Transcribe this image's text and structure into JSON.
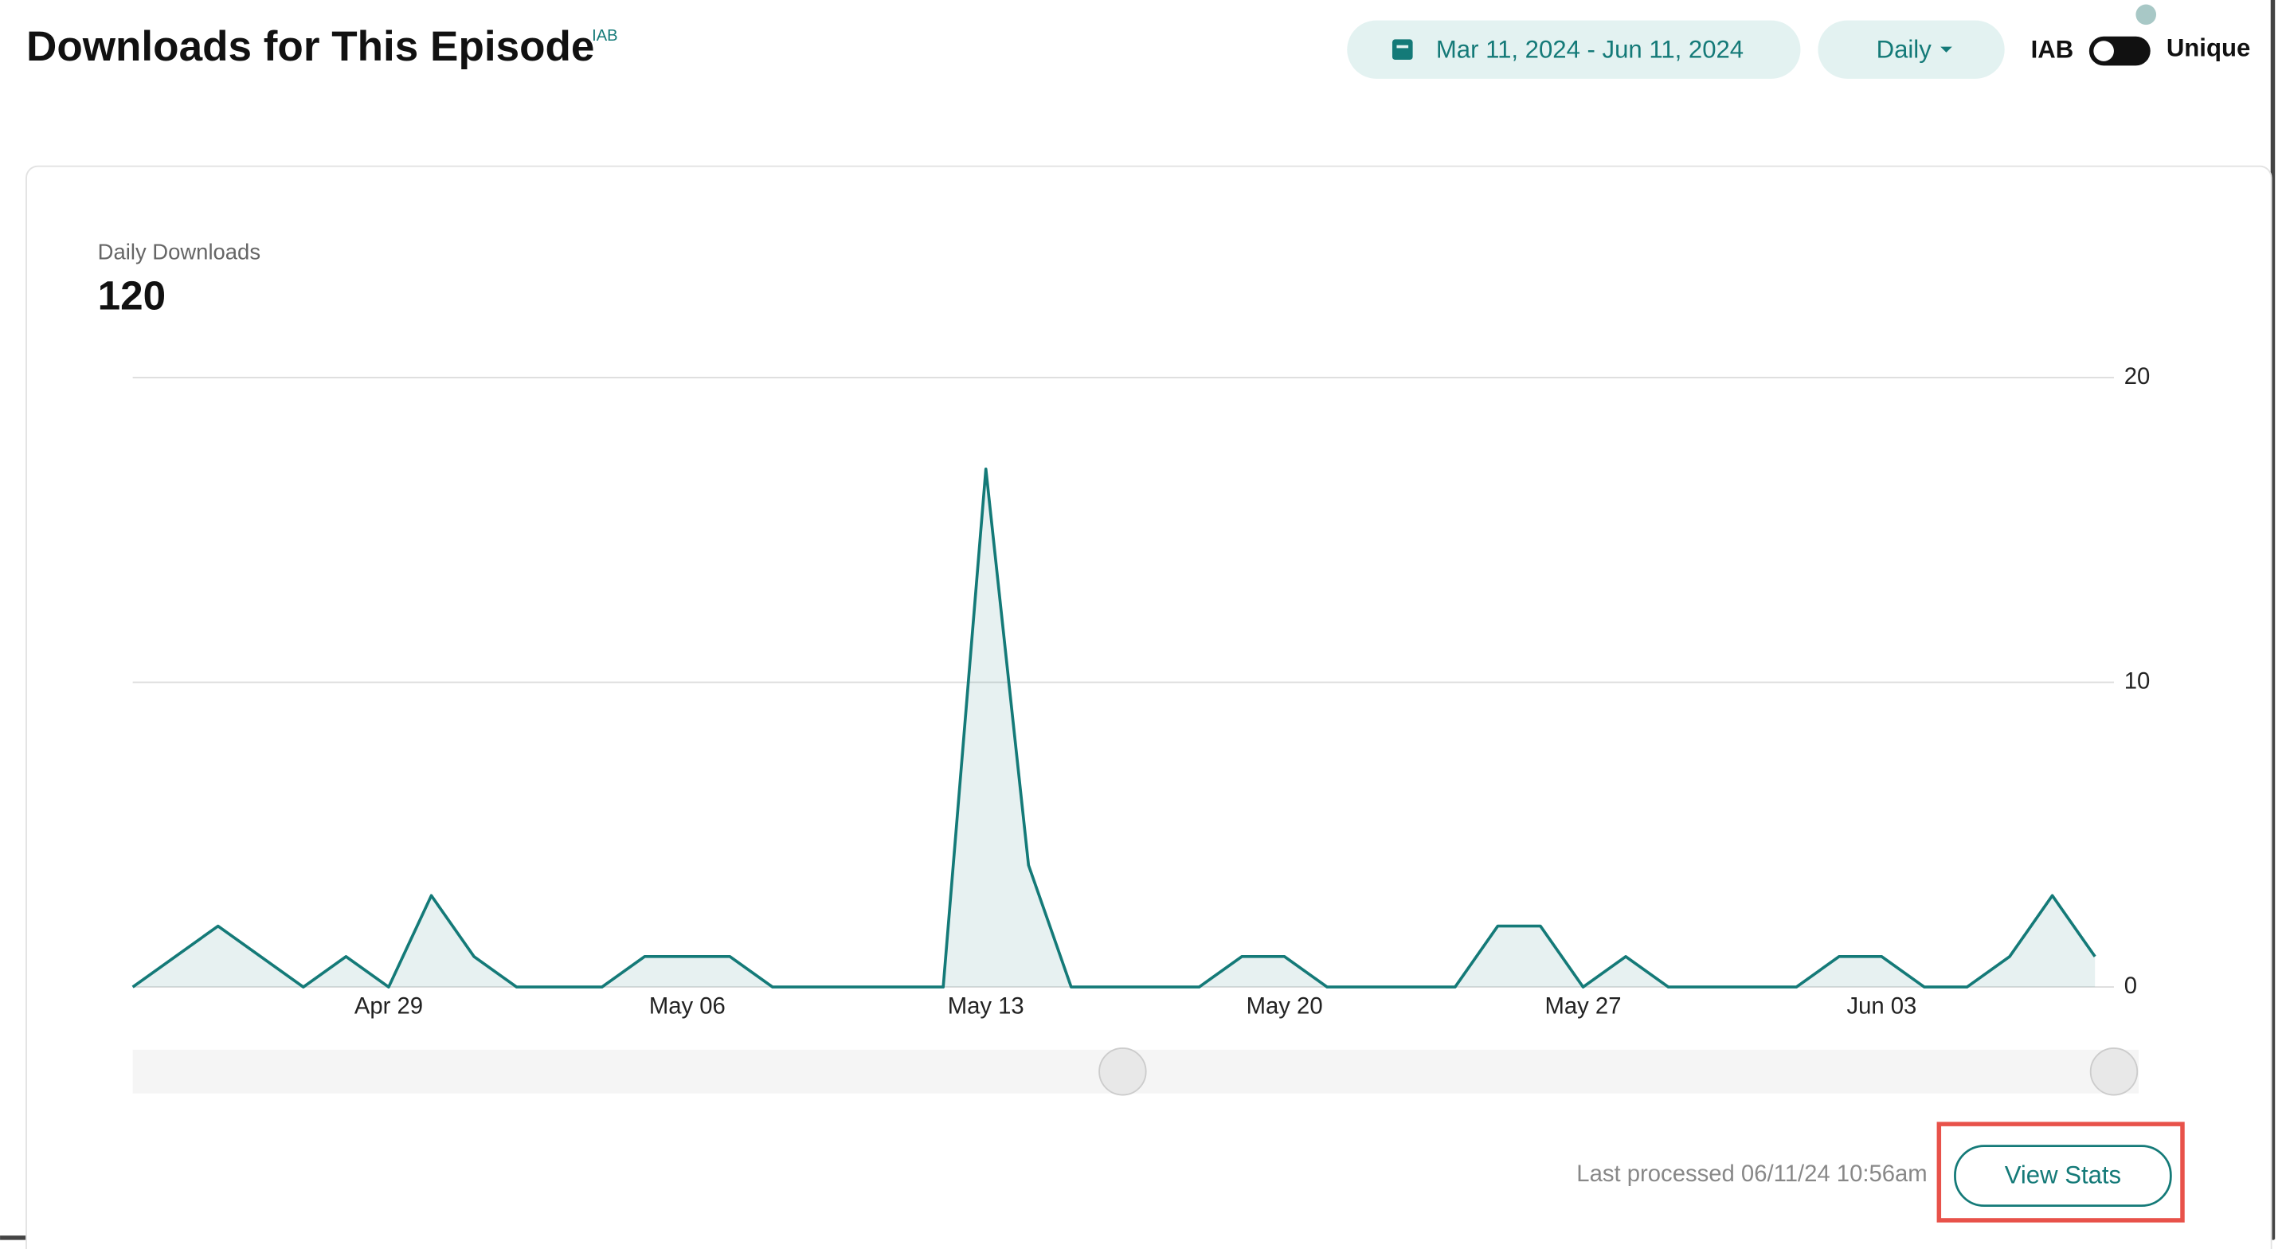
{
  "header": {
    "title": "Downloads for This Episode",
    "badge": "IAB",
    "date_range": "Mar 11, 2024 - Jun 11, 2024",
    "interval": "Daily",
    "toggle_left": "IAB",
    "toggle_right": "Unique"
  },
  "chart_data": {
    "type": "area",
    "title": "Daily Downloads",
    "total": 120,
    "categories": [
      null,
      null,
      null,
      null,
      null,
      null,
      "Apr 29",
      null,
      null,
      null,
      null,
      null,
      null,
      "May 06",
      null,
      null,
      null,
      null,
      null,
      null,
      "May 13",
      null,
      null,
      null,
      null,
      null,
      null,
      "May 20",
      null,
      null,
      null,
      null,
      null,
      null,
      "May 27",
      null,
      null,
      null,
      null,
      null,
      null,
      "Jun 03",
      null,
      null,
      null,
      null,
      null
    ],
    "values": [
      0,
      1,
      2,
      1,
      0,
      1,
      0,
      3,
      1,
      0,
      0,
      0,
      1,
      1,
      1,
      0,
      0,
      0,
      0,
      0,
      17,
      4,
      0,
      0,
      0,
      0,
      1,
      1,
      0,
      0,
      0,
      0,
      2,
      2,
      0,
      1,
      0,
      0,
      0,
      0,
      1,
      1,
      0,
      0,
      1,
      3,
      1
    ],
    "color": "#147a78",
    "ylim": [
      0,
      20
    ],
    "yticks": [
      0,
      10,
      20
    ],
    "grid": true
  },
  "footer": {
    "last_processed": "Last processed 06/11/24 10:56am",
    "button": "View Stats"
  }
}
